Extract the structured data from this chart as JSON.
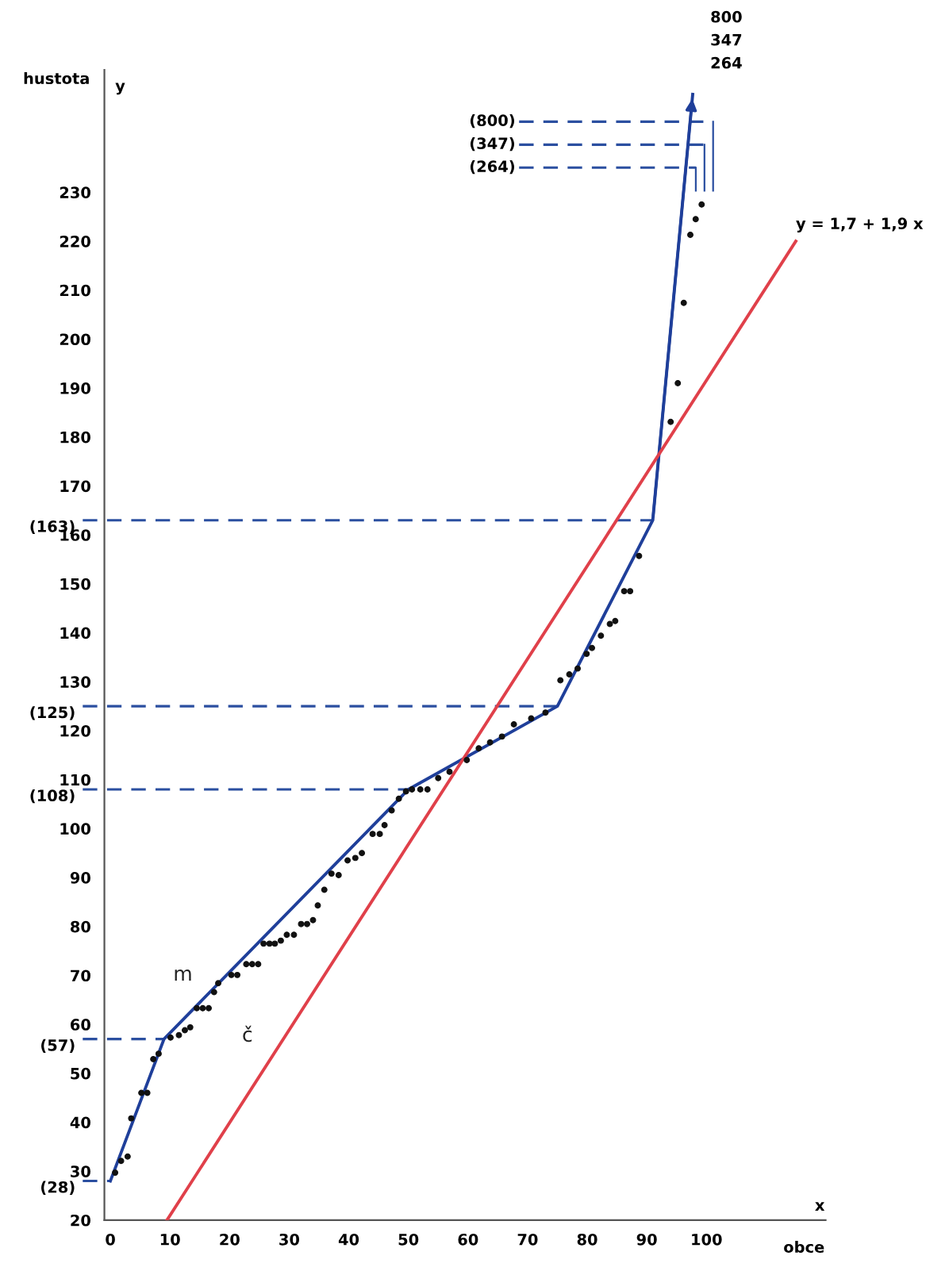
{
  "chart_data": {
    "type": "line",
    "xlabel": "obce",
    "ylabel": "hustota",
    "xlim": [
      -1,
      120
    ],
    "ylim": [
      20,
      255
    ],
    "xticks": [
      0,
      10,
      20,
      30,
      40,
      50,
      60,
      70,
      80,
      90,
      100
    ],
    "yticks": [
      20,
      30,
      40,
      50,
      60,
      70,
      80,
      90,
      100,
      110,
      120,
      130,
      140,
      150,
      160,
      170,
      180,
      190,
      200,
      210,
      220,
      230
    ],
    "grid": false,
    "legend": false,
    "series": [
      {
        "name": "m",
        "color": "#1f3f9a",
        "x": [
          0,
          9,
          50,
          75,
          91,
          97.7
        ],
        "values": [
          28,
          57,
          108,
          125,
          163,
          250
        ]
      },
      {
        "name": "č",
        "color": "#e0404a",
        "x": [
          9.5,
          115
        ],
        "values": [
          20,
          220
        ]
      },
      {
        "type": "scatter",
        "color": "#111111",
        "marker": "circle",
        "x": [
          0.8,
          1.8,
          2.9,
          3.5,
          5.2,
          6.2,
          7.2,
          8.1,
          10.1,
          11.5,
          12.5,
          13.4,
          14.5,
          15.5,
          16.5,
          17.4,
          18.1,
          20.3,
          21.3,
          22.8,
          23.8,
          24.8,
          25.7,
          26.7,
          27.6,
          28.6,
          29.6,
          30.8,
          32.0,
          33.0,
          34.0,
          34.8,
          35.9,
          37.1,
          38.3,
          39.8,
          41.1,
          42.2,
          44.0,
          45.2,
          46.0,
          47.2,
          48.4,
          49.6,
          50.6,
          52.0,
          53.2,
          55.0,
          56.9,
          59.8,
          61.8,
          63.7,
          65.7,
          67.7,
          70.6,
          73.0,
          75.5,
          77.0,
          78.4,
          79.9,
          80.8,
          82.3,
          83.8,
          84.7,
          86.2,
          87.2,
          88.7,
          94.0,
          95.2,
          96.2,
          97.3,
          98.2,
          99.2
        ],
        "values": [
          29.7,
          32.1,
          33,
          40.8,
          46,
          46,
          52.9,
          54,
          57.3,
          57.8,
          58.8,
          59.4,
          63.3,
          63.3,
          63.3,
          66.6,
          68.4,
          70.1,
          70.1,
          72.3,
          72.3,
          72.3,
          76.5,
          76.5,
          76.5,
          77.1,
          78.3,
          78.3,
          80.5,
          80.5,
          81.3,
          84.3,
          87.5,
          90.8,
          90.5,
          93.5,
          94,
          95,
          98.9,
          98.9,
          100.7,
          103.7,
          106.1,
          107.6,
          108,
          108,
          108,
          110.3,
          111.6,
          114,
          116.4,
          117.6,
          118.8,
          121.3,
          122.5,
          123.7,
          130.3,
          131.5,
          132.7,
          135.7,
          136.9,
          139.4,
          141.8,
          142.4,
          148.5,
          148.5,
          155.7,
          183.1,
          191,
          207.4,
          221.3,
          224.5,
          227.5
        ]
      }
    ],
    "ref_lines": [
      {
        "axis": "y",
        "value": 28,
        "label": "(28)",
        "color": "#2b4fa0",
        "line_style": "dashed"
      },
      {
        "axis": "y",
        "value": 57,
        "label": "(57)",
        "color": "#2b4fa0",
        "line_style": "dashed"
      },
      {
        "axis": "y",
        "value": 108,
        "label": "(108)",
        "color": "#2b4fa0",
        "line_style": "dashed"
      },
      {
        "axis": "y",
        "value": 125,
        "label": "(125)",
        "color": "#2b4fa0",
        "line_style": "dashed"
      },
      {
        "axis": "y",
        "value": 163,
        "label": "(163)",
        "color": "#2b4fa0",
        "line_style": "dashed"
      }
    ],
    "annotations": [
      {
        "text": "y = 1,7 + 1,9 x",
        "x": 115,
        "y": 220
      },
      "y",
      "x",
      "800",
      "347",
      "264",
      "(800)",
      "(347)",
      "(264)"
    ]
  }
}
